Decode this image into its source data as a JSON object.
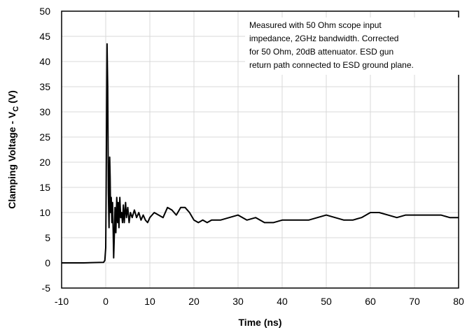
{
  "chart_data": {
    "type": "line",
    "title": "",
    "xlabel": "Time (ns)",
    "ylabel": {
      "prefix": "Clamping Voltage - V",
      "subscript": "C",
      "suffix": " (V)"
    },
    "xlim": [
      -10,
      80
    ],
    "ylim": [
      -5,
      50
    ],
    "xticks": [
      -10,
      0,
      10,
      20,
      30,
      40,
      50,
      60,
      70,
      80
    ],
    "yticks": [
      -5,
      0,
      5,
      10,
      15,
      20,
      25,
      30,
      35,
      40,
      45,
      50
    ],
    "grid": true,
    "line_color": "#000000",
    "annotation": [
      "Measured with 50 Ohm scope input",
      "impedance, 2GHz bandwidth. Corrected",
      "for 50 Ohm, 20dB attenuator. ESD gun",
      "return path connected to ESD ground plane."
    ],
    "series": [
      {
        "x": [
          -10,
          -5,
          -0.5,
          -0.2,
          0,
          0.1,
          0.2,
          0.3,
          0.45,
          0.6,
          0.75,
          0.9,
          1.0,
          1.1,
          1.25,
          1.4,
          1.55,
          1.7,
          1.8,
          1.9,
          2.0,
          2.1,
          2.3,
          2.5,
          2.7,
          2.85,
          3.0,
          3.2,
          3.4,
          3.6,
          3.8,
          4.0,
          4.2,
          4.5,
          4.7,
          5.0,
          5.3,
          5.6,
          6.0,
          6.5,
          7.0,
          7.5,
          8.0,
          8.5,
          9.0,
          9.5,
          10.0,
          11.0,
          12.0,
          13.0,
          14.0,
          15.0,
          16.0,
          17.0,
          18.0,
          19.0,
          20.0,
          21.0,
          22.0,
          23.0,
          24.0,
          26.0,
          28.0,
          30.0,
          32.0,
          34.0,
          36.0,
          38.0,
          40.0,
          42.0,
          44.0,
          46.0,
          48.0,
          50.0,
          52.0,
          54.0,
          56.0,
          58.0,
          60.0,
          62.0,
          64.0,
          66.0,
          68.0,
          70.0,
          72.0,
          74.0,
          76.0,
          78.0,
          80.0
        ],
        "y": [
          0,
          0,
          0.1,
          0.5,
          3,
          15,
          30,
          43.5,
          35,
          14,
          7,
          21,
          17,
          10,
          13,
          8,
          12,
          6,
          1,
          4,
          7,
          11,
          6,
          13,
          8,
          12,
          7,
          13,
          9,
          10,
          8,
          11.5,
          8,
          12,
          9,
          11,
          8,
          10,
          9,
          10.5,
          9,
          10,
          8.5,
          9.5,
          8.5,
          8,
          9,
          10,
          9.5,
          9,
          11,
          10.5,
          9.5,
          11,
          11,
          10,
          8.5,
          8,
          8.5,
          8,
          8.5,
          8.5,
          9,
          9.5,
          8.5,
          9,
          8,
          8,
          8.5,
          8.5,
          8.5,
          8.5,
          9,
          9.5,
          9,
          8.5,
          8.5,
          9,
          10,
          10,
          9.5,
          9,
          9.5,
          9.5,
          9.5,
          9.5,
          9.5,
          9,
          9
        ]
      }
    ]
  }
}
